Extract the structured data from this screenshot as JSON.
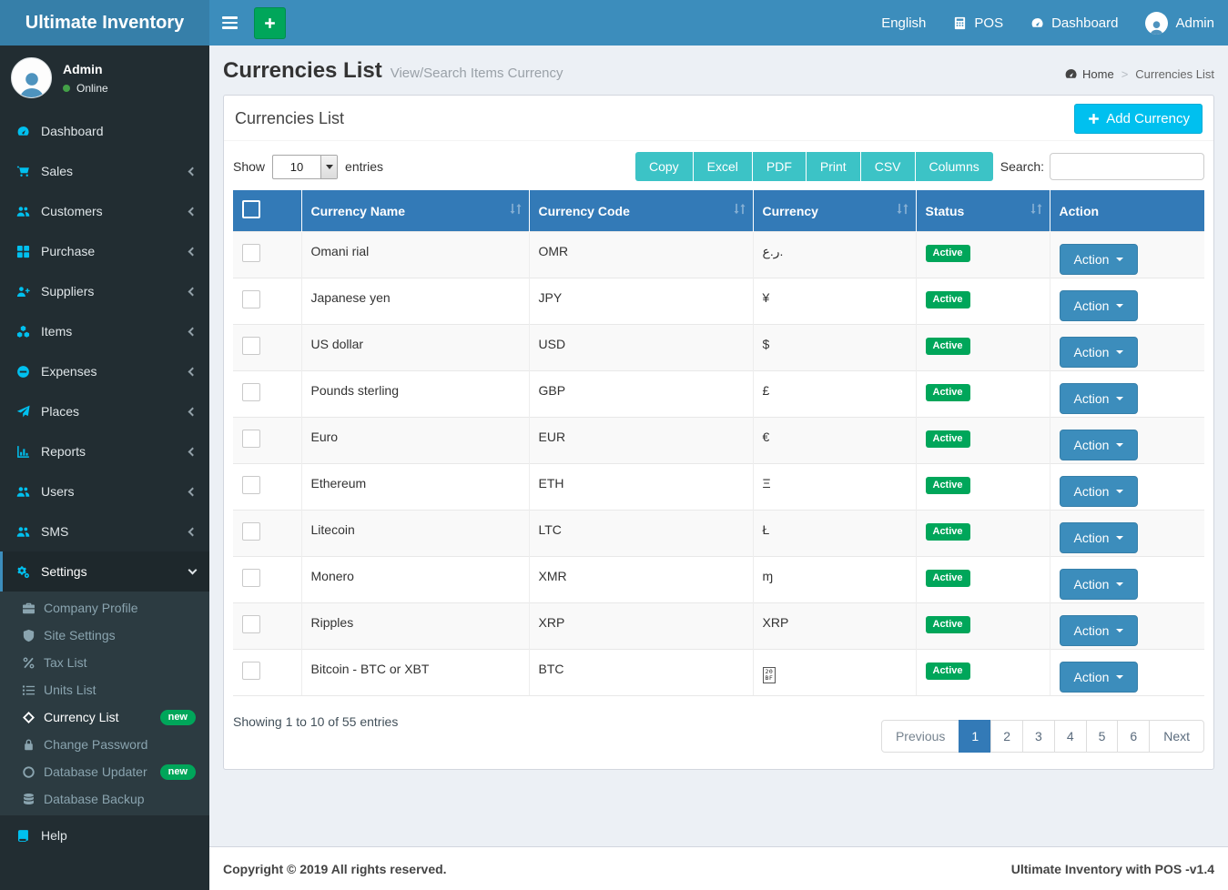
{
  "brand": "Ultimate Inventory",
  "navbar": {
    "language": "English",
    "pos_label": "POS",
    "dashboard_label": "Dashboard",
    "user_label": "Admin"
  },
  "sidebar": {
    "user": {
      "name": "Admin",
      "status": "Online"
    },
    "items": [
      {
        "label": "Dashboard",
        "icon": "dashboard",
        "has_children": false
      },
      {
        "label": "Sales",
        "icon": "cart",
        "has_children": true
      },
      {
        "label": "Customers",
        "icon": "users",
        "has_children": true
      },
      {
        "label": "Purchase",
        "icon": "grid",
        "has_children": true
      },
      {
        "label": "Suppliers",
        "icon": "user-plus",
        "has_children": true
      },
      {
        "label": "Items",
        "icon": "cubes",
        "has_children": true
      },
      {
        "label": "Expenses",
        "icon": "minus-circle",
        "has_children": true
      },
      {
        "label": "Places",
        "icon": "paper-plane",
        "has_children": true
      },
      {
        "label": "Reports",
        "icon": "bar-chart",
        "has_children": true
      },
      {
        "label": "Users",
        "icon": "users",
        "has_children": true
      },
      {
        "label": "SMS",
        "icon": "users",
        "has_children": true
      },
      {
        "label": "Settings",
        "icon": "gears",
        "has_children": true,
        "active": true,
        "expanded": true
      }
    ],
    "settings_submenu": [
      {
        "label": "Company Profile",
        "icon": "briefcase"
      },
      {
        "label": "Site Settings",
        "icon": "shield"
      },
      {
        "label": "Tax List",
        "icon": "percent"
      },
      {
        "label": "Units List",
        "icon": "list"
      },
      {
        "label": "Currency List",
        "icon": "diamond",
        "active": true,
        "badge": "new"
      },
      {
        "label": "Change Password",
        "icon": "lock"
      },
      {
        "label": "Database Updater",
        "icon": "circle-o",
        "badge": "new"
      },
      {
        "label": "Database Backup",
        "icon": "database"
      }
    ],
    "help_item": {
      "label": "Help",
      "icon": "book"
    }
  },
  "page": {
    "title": "Currencies List",
    "subtitle": "View/Search Items Currency",
    "breadcrumb": {
      "home": "Home",
      "current": "Currencies List"
    }
  },
  "panel": {
    "title": "Currencies List",
    "add_button_label": "Add Currency"
  },
  "toolbar": {
    "show_label": "Show",
    "page_size": "10",
    "entries_label": "entries",
    "export_buttons": [
      "Copy",
      "Excel",
      "PDF",
      "Print",
      "CSV",
      "Columns"
    ],
    "search_label": "Search:",
    "search_value": ""
  },
  "table": {
    "action_label": "Action",
    "columns": [
      {
        "label": "Currency Name",
        "sortable": true
      },
      {
        "label": "Currency Code",
        "sortable": true
      },
      {
        "label": "Currency",
        "sortable": true
      },
      {
        "label": "Status",
        "sortable": true
      },
      {
        "label": "Action",
        "sortable": false
      }
    ],
    "rows": [
      {
        "name": "Omani rial",
        "code": "OMR",
        "symbol": "ر.ع.",
        "status": "Active"
      },
      {
        "name": "Japanese yen",
        "code": "JPY",
        "symbol": "¥",
        "status": "Active"
      },
      {
        "name": "US dollar",
        "code": "USD",
        "symbol": "$",
        "status": "Active"
      },
      {
        "name": "Pounds sterling",
        "code": "GBP",
        "symbol": "£",
        "status": "Active"
      },
      {
        "name": "Euro",
        "code": "EUR",
        "symbol": "€",
        "status": "Active"
      },
      {
        "name": "Ethereum",
        "code": "ETH",
        "symbol": "Ξ",
        "status": "Active"
      },
      {
        "name": "Litecoin",
        "code": "LTC",
        "symbol": "Ł",
        "status": "Active"
      },
      {
        "name": "Monero",
        "code": "XMR",
        "symbol": "ɱ",
        "status": "Active"
      },
      {
        "name": "Ripples",
        "code": "XRP",
        "symbol": "XRP",
        "status": "Active"
      },
      {
        "name": "Bitcoin - BTC or XBT",
        "code": "BTC",
        "symbol": "₿",
        "missing_glyph": "20BF",
        "status": "Active"
      }
    ],
    "info": "Showing 1 to 10 of 55 entries"
  },
  "pagination": {
    "items": [
      "Previous",
      "1",
      "2",
      "3",
      "4",
      "5",
      "6",
      "Next"
    ],
    "active": "1"
  },
  "footer": {
    "left": "Copyright © 2019 All rights reserved.",
    "right": "Ultimate Inventory with POS -v1.4"
  },
  "theme": {
    "navbar_blue": "#3c8dbc",
    "logo_blue": "#367fa9",
    "sidebar_dark": "#222d32",
    "submenu_dark": "#2c3b41",
    "sidebar_icon_cyan": "#00c0ef",
    "table_header_blue": "#337ab7",
    "export_button_teal": "#3cc3c6",
    "success_green": "#00a65a",
    "info_cyan": "#00c0ef",
    "page_background": "#ecf0f5"
  }
}
